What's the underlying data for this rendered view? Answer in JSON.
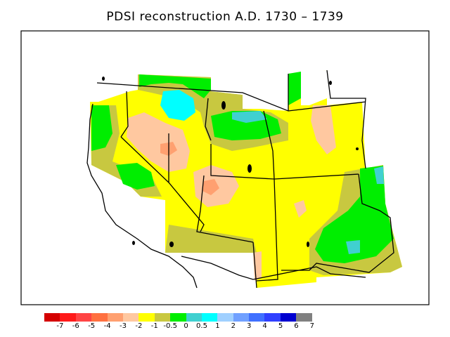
{
  "title": "PDSI reconstruction A.D. 1730 – 1739",
  "colors": {
    "background": "#ffffff",
    "outline": "#000000",
    "legend_swatches": [
      "#d40000",
      "#ff1a1a",
      "#ff4444",
      "#ff7040",
      "#ffa070",
      "#ffc8a0",
      "#ffff00",
      "#c8c840",
      "#00ee00",
      "#40d0d0",
      "#00ffff",
      "#a0d0ff",
      "#70a0ff",
      "#4070ff",
      "#3040ff",
      "#0000d0",
      "#808080"
    ],
    "map_fills": {
      "base_yellow": "#ffff00",
      "olive": "#c8c840",
      "green": "#00ee00",
      "cyan": "#00ffff",
      "teal": "#40d0d0",
      "peach": "#ffc8a0",
      "salmon": "#ffa070"
    }
  },
  "legend": {
    "labels": [
      "-7",
      "-6",
      "-5",
      "-4",
      "-3",
      "-2",
      "-1",
      "-0.5",
      "0",
      "0.5",
      "1",
      "2",
      "3",
      "4",
      "5",
      "6",
      "7"
    ]
  }
}
